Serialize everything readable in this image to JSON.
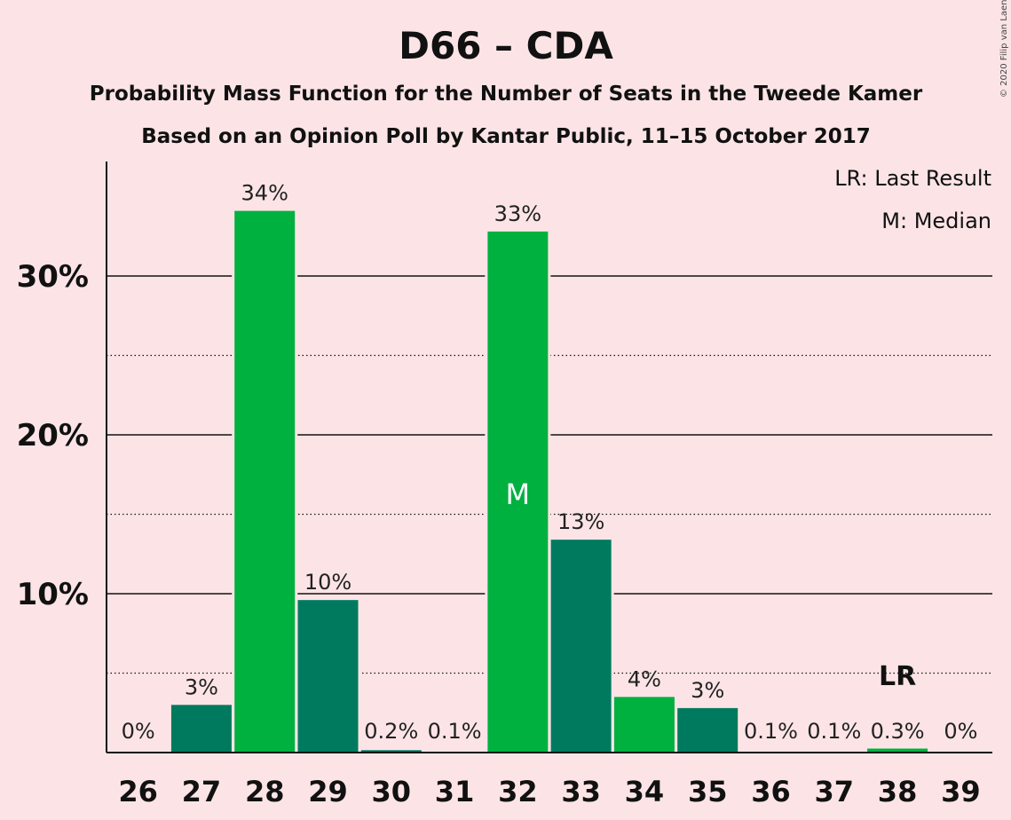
{
  "chart_data": {
    "type": "bar",
    "title": "D66 – CDA",
    "subtitle1": "Probability Mass Function for the Number of Seats in the Tweede Kamer",
    "subtitle2": "Based on an Opinion Poll by Kantar Public, 11–15 October 2017",
    "copyright": "© 2020 Filip van Laenen",
    "legend": [
      "LR: Last Result",
      "M: Median"
    ],
    "legend_position": "top-right",
    "categories": [
      "26",
      "27",
      "28",
      "29",
      "30",
      "31",
      "32",
      "33",
      "34",
      "35",
      "36",
      "37",
      "38",
      "39"
    ],
    "values": [
      0,
      3.0,
      34.1,
      9.6,
      0.15,
      0.05,
      32.8,
      13.4,
      3.5,
      2.8,
      0.05,
      0.05,
      0.25,
      0
    ],
    "value_labels": [
      "0%",
      "3%",
      "34%",
      "10%",
      "0.2%",
      "0.1%",
      "33%",
      "13%",
      "4%",
      "3%",
      "0.1%",
      "0.1%",
      "0.3%",
      "0%"
    ],
    "bar_colors": [
      "#00b140",
      "#007a5e",
      "#00b140",
      "#007a5e",
      "#007a5e",
      "#00b140",
      "#00b140",
      "#007a5e",
      "#00b140",
      "#007a5e",
      "#007a5e",
      "#007a5e",
      "#00b140",
      "#007a5e"
    ],
    "median_index": 6,
    "median_label": "M",
    "last_result_index": 12,
    "last_result_label": "LR",
    "ylim": [
      0,
      37
    ],
    "yticks_major": [
      10,
      20,
      30
    ],
    "ytick_labels": [
      "10%",
      "20%",
      "30%"
    ],
    "yticks_minor": [
      5,
      15,
      25
    ],
    "grid": true
  }
}
